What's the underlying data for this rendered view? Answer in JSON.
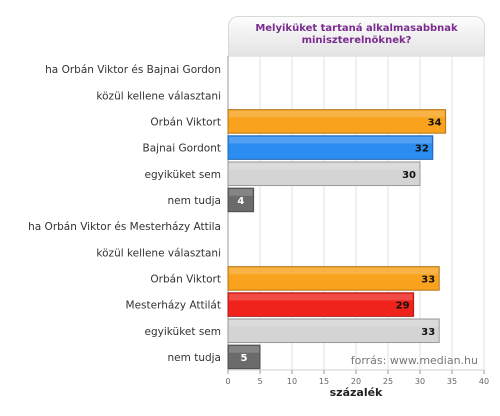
{
  "chart_data": {
    "type": "bar",
    "orientation": "horizontal",
    "title_line1": "Melyiküket tartaná alkalmasabbnak",
    "title_line2": "miniszterelnöknek?",
    "xlabel": "százalék",
    "source": "forrás: www.median.hu",
    "xlim": [
      0,
      40
    ],
    "xticks": [
      0,
      5,
      10,
      15,
      20,
      25,
      30,
      35,
      40
    ],
    "grid": true,
    "categories": [
      "ha Orbán Viktor és Bajnai Gordon",
      "közül kellene választani",
      "Orbán Viktort",
      "Bajnai Gordont",
      "egyiküket sem",
      "nem tudja",
      "ha Orbán Viktor és Mesterházy Attila",
      "közül kellene választani",
      "Orbán Viktort",
      "Mesterházy Attilát",
      "egyiküket sem",
      "nem tudja"
    ],
    "values": [
      null,
      null,
      34,
      32,
      30,
      4,
      null,
      null,
      33,
      29,
      33,
      5
    ],
    "colors": [
      null,
      null,
      "#f8a21e",
      "#2b8cf2",
      "#d4d4d4",
      "#6b6b6b",
      null,
      null,
      "#f8a21e",
      "#f0231c",
      "#d4d4d4",
      "#6b6b6b"
    ]
  }
}
